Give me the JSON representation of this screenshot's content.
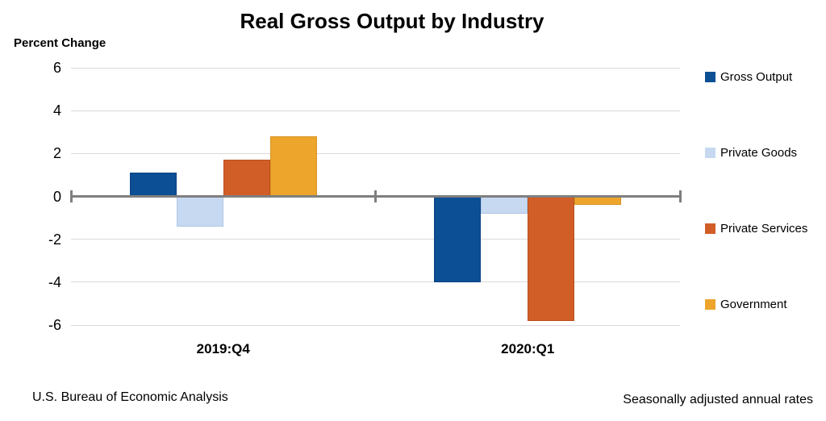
{
  "title": "Real Gross Output by Industry",
  "axis_unit_label": "Percent Change",
  "footer": {
    "left": "U.S. Bureau of Economic Analysis",
    "right": "Seasonally adjusted annual rates"
  },
  "chart_data": {
    "type": "bar",
    "title": "Real Gross Output by Industry",
    "ylabel": "Percent Change",
    "xlabel": "",
    "categories": [
      "2019:Q4",
      "2020:Q1"
    ],
    "series": [
      {
        "name": "Gross Output",
        "color": "#0d4f94",
        "border": "#0b4383",
        "values": [
          1.1,
          -4.0
        ]
      },
      {
        "name": "Private Goods",
        "color": "#c6d9f1",
        "border": "#aec6e6",
        "values": [
          -1.4,
          -0.8
        ]
      },
      {
        "name": "Private Services",
        "color": "#d15e27",
        "border": "#bd4f1c",
        "values": [
          1.7,
          -5.8
        ]
      },
      {
        "name": "Government",
        "color": "#eda52c",
        "border": "#d89420",
        "values": [
          2.8,
          -0.4
        ]
      }
    ],
    "ylim": [
      -6,
      6
    ],
    "yticks": [
      6,
      4,
      2,
      0,
      -2,
      -4,
      -6
    ],
    "grid": true,
    "legend_position": "right",
    "axis_color": "#7f7f7f",
    "gridline_color": "#d9d9d9"
  }
}
